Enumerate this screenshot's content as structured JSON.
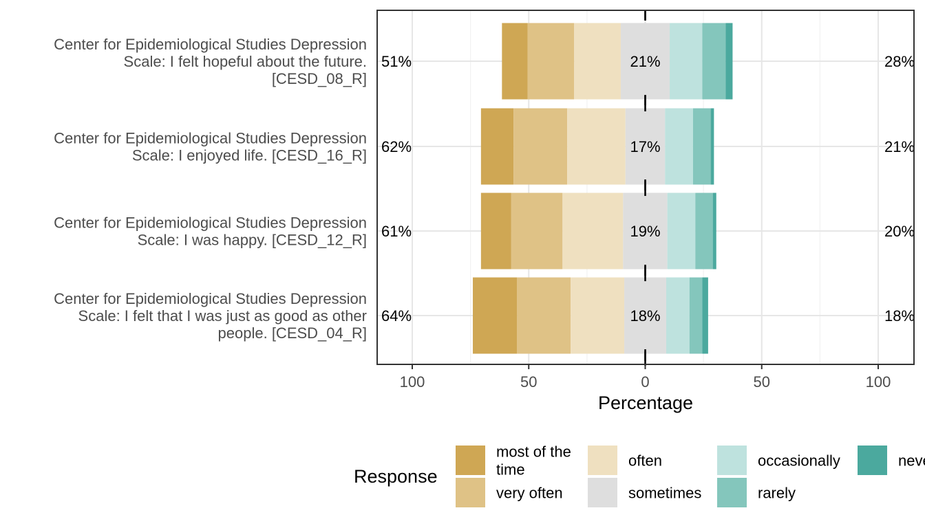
{
  "chart_data": {
    "type": "bar",
    "orientation": "horizontal",
    "stacked": "diverging",
    "xlabel": "Percentage",
    "xlim": [
      -100,
      100
    ],
    "x_ticks": [
      -100,
      -50,
      0,
      50,
      100
    ],
    "x_tick_labels": [
      "100",
      "50",
      "0",
      "50",
      "100"
    ],
    "grid": true,
    "center_line": true,
    "legend_title": "Response",
    "legend_position": "bottom",
    "categories_levels": [
      "most of the time",
      "very often",
      "often",
      "sometimes",
      "occasionally",
      "rarely",
      "never"
    ],
    "colors": [
      "#CFA754",
      "#DFC286",
      "#EFE0C0",
      "#DEDEDE",
      "#BEE2DE",
      "#84C6BC",
      "#4BA99E"
    ],
    "items": [
      {
        "label": "Center for Epidemiological Studies Depression Scale: I felt hopeful about the future. [CESD_08_R]",
        "label_lines": [
          "Center for Epidemiological Studies Depression",
          "Scale: I felt hopeful about the future.",
          "[CESD_08_R]"
        ],
        "values": [
          11,
          20,
          20,
          21,
          14,
          10,
          3
        ],
        "low_pct": "51%",
        "neutral_pct": "21%",
        "high_pct": "28%"
      },
      {
        "label": "Center for Epidemiological Studies Depression Scale: I enjoyed life. [CESD_16_R]",
        "label_lines": [
          "Center for Epidemiological Studies Depression",
          "Scale: I enjoyed life. [CESD_16_R]"
        ],
        "values": [
          14,
          23,
          25,
          17,
          12,
          7.6,
          1.4
        ],
        "low_pct": "62%",
        "neutral_pct": "17%",
        "high_pct": "21%"
      },
      {
        "label": "Center for Epidemiological Studies Depression Scale: I was happy. [CESD_12_R]",
        "label_lines": [
          "Center for Epidemiological Studies Depression",
          "Scale: I was happy. [CESD_12_R]"
        ],
        "values": [
          13,
          22,
          26,
          19,
          12,
          7.5,
          1.5
        ],
        "low_pct": "61%",
        "neutral_pct": "19%",
        "high_pct": "20%"
      },
      {
        "label": "Center for Epidemiological Studies Depression Scale: I felt that I was just as good as other people. [CESD_04_R]",
        "label_lines": [
          "Center for Epidemiological Studies Depression",
          "Scale: I felt that I was just as good as other",
          "people. [CESD_04_R]"
        ],
        "values": [
          19,
          23,
          23,
          18,
          10,
          5.5,
          2.5
        ],
        "low_pct": "64%",
        "neutral_pct": "18%",
        "high_pct": "18%"
      }
    ]
  },
  "legend": {
    "title": "Response",
    "entries": [
      {
        "label_lines": [
          "most of the",
          "time"
        ],
        "color": "#CFA754"
      },
      {
        "label_lines": [
          "very often"
        ],
        "color": "#DFC286"
      },
      {
        "label_lines": [
          "often"
        ],
        "color": "#EFE0C0"
      },
      {
        "label_lines": [
          "sometimes"
        ],
        "color": "#DEDEDE"
      },
      {
        "label_lines": [
          "occasionally"
        ],
        "color": "#BEE2DE"
      },
      {
        "label_lines": [
          "rarely"
        ],
        "color": "#84C6BC"
      },
      {
        "label_lines": [
          "never"
        ],
        "color": "#4BA99E"
      }
    ]
  }
}
